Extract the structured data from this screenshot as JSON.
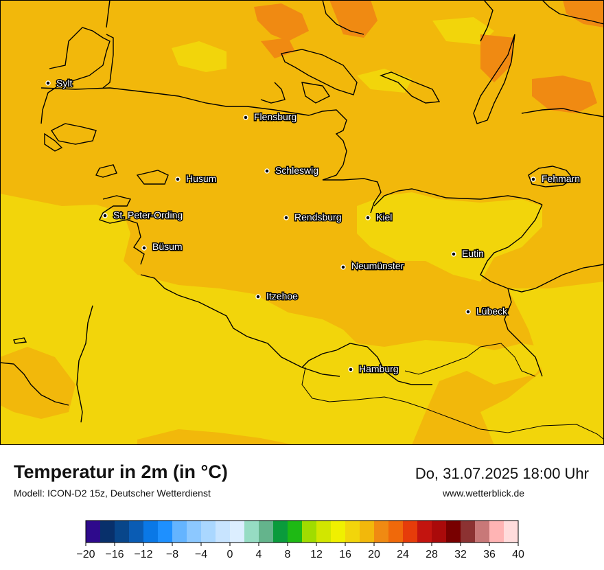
{
  "title": "Temperatur in 2m (in °C)",
  "model": "Modell: ICON-D2 15z, Deutscher Wetterdienst",
  "datetime": "Do, 31.07.2025 18:00 Uhr",
  "website": "www.wetterblick.de",
  "colors": {
    "t14_16": "#f0f000",
    "t16_18": "#f2d50b",
    "t18_20": "#f2b80b",
    "t20_22": "#f08a12",
    "coast": "#000000"
  },
  "cities": [
    {
      "name": "Sylt"
    },
    {
      "name": "Flensburg"
    },
    {
      "name": "Schleswig"
    },
    {
      "name": "Husum"
    },
    {
      "name": "Fehmarn"
    },
    {
      "name": "St. Peter-Ording"
    },
    {
      "name": "Rendsburg"
    },
    {
      "name": "Kiel"
    },
    {
      "name": "Büsum"
    },
    {
      "name": "Eutin"
    },
    {
      "name": "Neumünster"
    },
    {
      "name": "Itzehoe"
    },
    {
      "name": "Lübeck"
    },
    {
      "name": "Hamburg"
    }
  ],
  "colorbar": {
    "unit": "°C",
    "colors": [
      "#2e0a8c",
      "#08306b",
      "#08468a",
      "#0a5cb4",
      "#0a78e6",
      "#1e90ff",
      "#64b4ff",
      "#8cc8ff",
      "#aad7ff",
      "#c8e4ff",
      "#dceeff",
      "#96dcc3",
      "#64b48c",
      "#0a9b3c",
      "#1eb914",
      "#a0dc00",
      "#d2e600",
      "#f0f000",
      "#f2d50b",
      "#f2b80b",
      "#f08a12",
      "#f0690a",
      "#e63c0a",
      "#c3140f",
      "#aa0a0a",
      "#780000",
      "#8c3232",
      "#c87878",
      "#ffb4b4",
      "#ffdcdc"
    ],
    "tick_labels": [
      "−20",
      "−16",
      "−12",
      "−8",
      "−4",
      "0",
      "4",
      "8",
      "12",
      "16",
      "20",
      "24",
      "28",
      "32",
      "36",
      "40"
    ]
  }
}
